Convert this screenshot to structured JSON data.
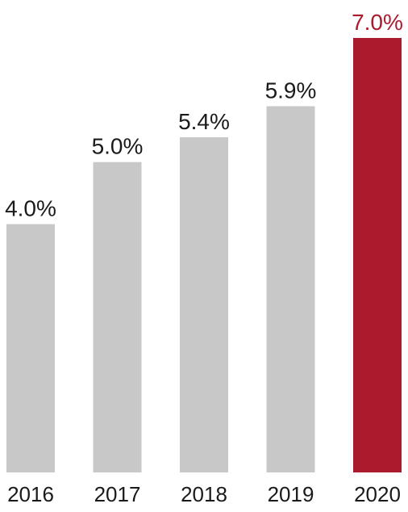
{
  "chart_data": {
    "type": "bar",
    "categories": [
      "2016",
      "2017",
      "2018",
      "2019",
      "2020"
    ],
    "values": [
      4.0,
      5.0,
      5.4,
      5.9,
      7.0
    ],
    "value_labels": [
      "4.0%",
      "5.0%",
      "5.4%",
      "5.9%",
      "7.0%"
    ],
    "title": "",
    "xlabel": "",
    "ylabel": "",
    "ylim": [
      0,
      7.0
    ],
    "grid": false,
    "legend": "none",
    "colors": {
      "default_bar": "#c8c8c8",
      "highlight_bar": "#ab1a2d",
      "default_label": "#1a1a1a",
      "highlight_label": "#ab1a2d"
    },
    "highlight_index": 4
  }
}
